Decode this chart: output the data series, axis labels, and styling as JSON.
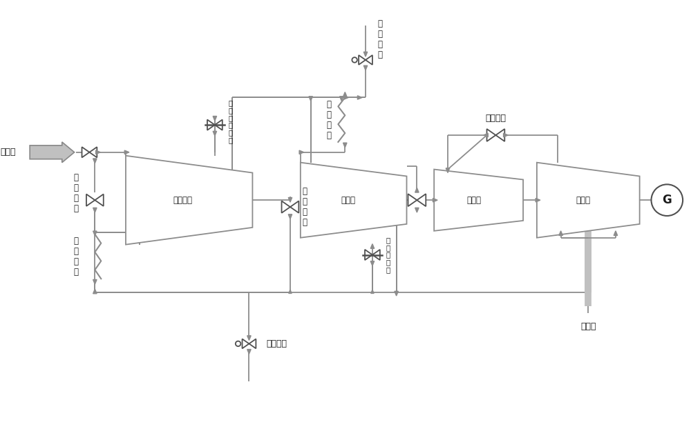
{
  "bg_color": "#ffffff",
  "pipe_color": "#8c8c8c",
  "pipe_color_light": "#b0b0b0",
  "pipe_green": "#7cba8c",
  "pipe_purple": "#b09ccc",
  "valve_color": "#505050",
  "text_color": "#1a1a1a",
  "figsize": [
    10.0,
    6.25
  ],
  "dpi": 100,
  "labels": {
    "main_steam": "主蒸汽",
    "first_bypass": "一\n级\n旁\n路",
    "first_reheat": "一\n次\n再\n热",
    "second_bypass": "二\n级\n旁\n路",
    "second_reheat": "二\n级\n再\n热",
    "uhp_valve": "超\n高\n压\n调\n节\n阀",
    "uhp_cylinder": "超高压缸",
    "hp_cylinder": "高压缸",
    "mp_cylinder": "中压缸",
    "lp_cylinder": "低压缸",
    "hp_valve": "高\n压\n调\n节\n阀",
    "lp_bypass": "低压旁路",
    "condenser": "凝汽器",
    "first_spray": "一再喷水",
    "second_spray": "二\n再\n喷\n水",
    "generator": "G"
  }
}
